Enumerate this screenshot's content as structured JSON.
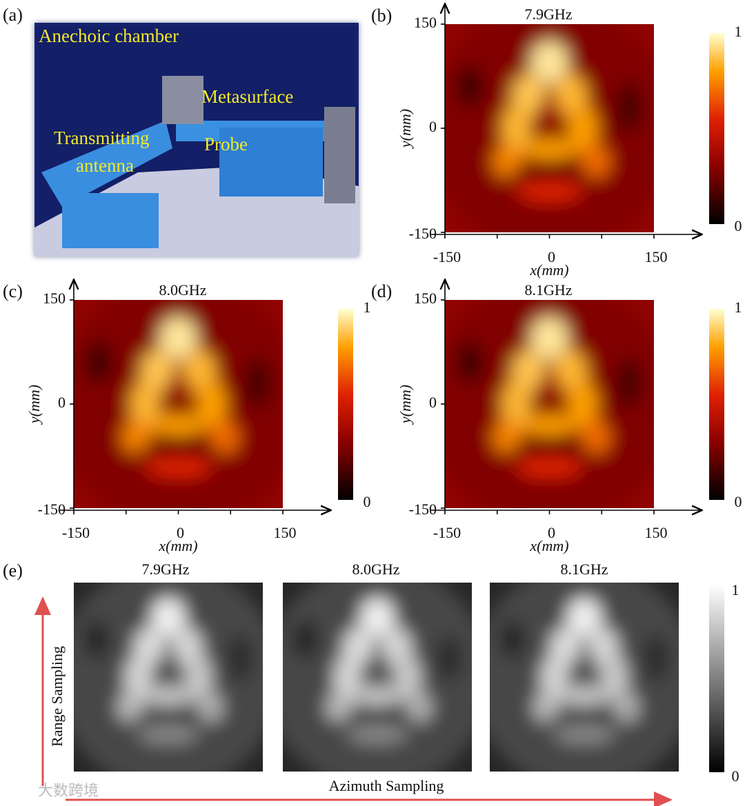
{
  "watermark": "大数跨境",
  "panel_a": {
    "label": "(a)",
    "annotations": [
      "Anechoic chamber",
      "Metasurface",
      "Transmitting",
      "antenna",
      "Probe"
    ]
  },
  "panel_b": {
    "label": "(b)",
    "title": "7.9GHz",
    "x_label": "x(mm)",
    "y_label": "y(mm)",
    "x_ticks": [
      -150,
      0,
      150
    ],
    "y_ticks": [
      150,
      0,
      -150
    ],
    "colorbar_ticks": [
      1,
      0
    ]
  },
  "panel_c": {
    "label": "(c)",
    "title": "8.0GHz",
    "x_label": "x(mm)",
    "y_label": "y(mm)",
    "x_ticks": [
      -150,
      0,
      150
    ],
    "y_ticks": [
      150,
      0,
      -150
    ],
    "colorbar_ticks": [
      1,
      0
    ]
  },
  "panel_d": {
    "label": "(d)",
    "title": "8.1GHz",
    "x_label": "x(mm)",
    "y_label": "y(mm)",
    "x_ticks": [
      -150,
      0,
      150
    ],
    "y_ticks": [
      150,
      0,
      -150
    ],
    "colorbar_ticks": [
      1,
      0
    ]
  },
  "panel_e": {
    "label": "(e)",
    "titles": [
      "7.9GHz",
      "8.0GHz",
      "8.1GHz"
    ],
    "colorbar_ticks": [
      1,
      0
    ],
    "vertical_arrow_label": "Range Sampling",
    "horizontal_arrow_label": "Azimuth Sampling"
  }
}
